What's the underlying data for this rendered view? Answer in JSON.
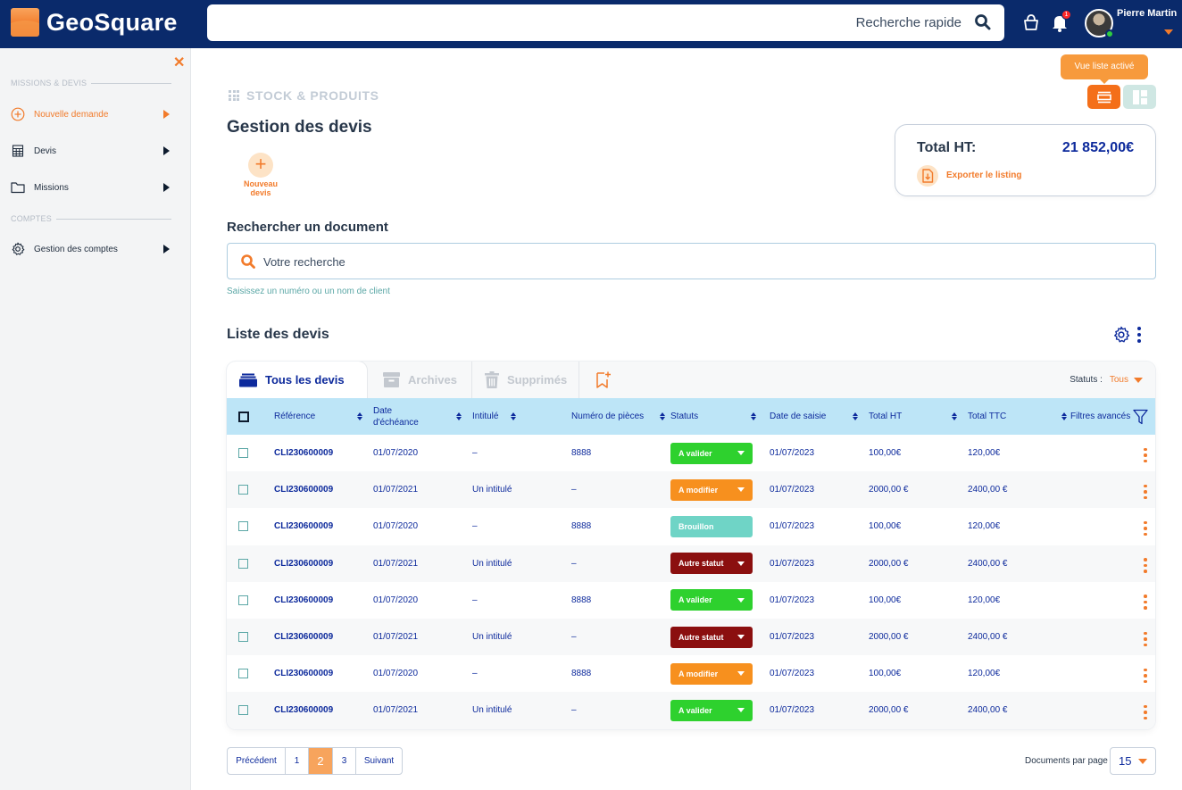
{
  "header": {
    "logo_text": "GeoSquare",
    "quick_search_label": "Recherche rapide",
    "notification_count": "1",
    "user_name": "Pierre Martin"
  },
  "sidebar": {
    "section_missions": "MISSIONS & DEVIS",
    "section_accounts": "COMPTES",
    "items": [
      {
        "label": "Nouvelle demande",
        "icon": "plus-circle-icon",
        "active": true
      },
      {
        "label": "Devis",
        "icon": "calculator-icon",
        "active": false
      },
      {
        "label": "Missions",
        "icon": "folder-icon",
        "active": false
      },
      {
        "label": "Gestion des comptes",
        "icon": "gear-icon",
        "active": false
      }
    ]
  },
  "main": {
    "tooltip": "Vue liste activé",
    "breadcrumb": "STOCK & PRODUITS",
    "title": "Gestion des devis",
    "new_quote_label_1": "Nouveau",
    "new_quote_label_2": "devis",
    "total_label": "Total HT:",
    "total_value": "21 852,00€",
    "export_label": "Exporter le listing",
    "search_title": "Rechercher un document",
    "search_placeholder": "Votre recherche",
    "search_hint": "Saisissez un numéro ou un nom de client",
    "list_title": "Liste des devis"
  },
  "tabs": {
    "all": "Tous les devis",
    "archives": "Archives",
    "deleted": "Supprimés",
    "status_label": "Statuts :",
    "status_value": "Tous"
  },
  "table": {
    "headers": {
      "reference": "Référence",
      "due_date_1": "Date",
      "due_date_2": "d'échéance",
      "title": "Intitulé",
      "parts": "Numéro de pièces",
      "status": "Statuts",
      "entry_date": "Date de saisie",
      "total_ht": "Total HT",
      "total_ttc": "Total TTC",
      "filters": "Filtres avancés"
    },
    "rows": [
      {
        "ref": "CLI230600009",
        "due": "01/07/2020",
        "title": "–",
        "parts": "8888",
        "status": "A valider",
        "status_color": "#2ed12e",
        "entry": "01/07/2023",
        "ht": "100,00€",
        "ttc": "120,00€"
      },
      {
        "ref": "CLI230600009",
        "due": "01/07/2021",
        "title": "Un intitulé",
        "parts": "–",
        "status": "A modifier",
        "status_color": "#f7901e",
        "entry": "01/07/2023",
        "ht": "2000,00 €",
        "ttc": "2400,00 €"
      },
      {
        "ref": "CLI230600009",
        "due": "01/07/2020",
        "title": "–",
        "parts": "8888",
        "status": "Brouillon",
        "status_color": "#6fd4c6",
        "entry": "01/07/2023",
        "ht": "100,00€",
        "ttc": "120,00€"
      },
      {
        "ref": "CLI230600009",
        "due": "01/07/2021",
        "title": "Un intitulé",
        "parts": "–",
        "status": "Autre statut",
        "status_color": "#8b0f0f",
        "entry": "01/07/2023",
        "ht": "2000,00 €",
        "ttc": "2400,00 €"
      },
      {
        "ref": "CLI230600009",
        "due": "01/07/2020",
        "title": "–",
        "parts": "8888",
        "status": "A valider",
        "status_color": "#2ed12e",
        "entry": "01/07/2023",
        "ht": "100,00€",
        "ttc": "120,00€"
      },
      {
        "ref": "CLI230600009",
        "due": "01/07/2021",
        "title": "Un intitulé",
        "parts": "–",
        "status": "Autre statut",
        "status_color": "#8b0f0f",
        "entry": "01/07/2023",
        "ht": "2000,00 €",
        "ttc": "2400,00 €"
      },
      {
        "ref": "CLI230600009",
        "due": "01/07/2020",
        "title": "–",
        "parts": "8888",
        "status": "A modifier",
        "status_color": "#f7901e",
        "entry": "01/07/2023",
        "ht": "100,00€",
        "ttc": "120,00€"
      },
      {
        "ref": "CLI230600009",
        "due": "01/07/2021",
        "title": "Un intitulé",
        "parts": "–",
        "status": "A valider",
        "status_color": "#2ed12e",
        "entry": "01/07/2023",
        "ht": "2000,00 €",
        "ttc": "2400,00 €"
      }
    ]
  },
  "pagination": {
    "prev": "Précédent",
    "pages": [
      "1",
      "2",
      "3"
    ],
    "current": "2",
    "next": "Suivant",
    "per_page_label": "Documents par page",
    "per_page_value": "15"
  },
  "colors": {
    "brand_navy": "#0a2a6b",
    "accent_orange": "#f27b2b",
    "table_header": "#bde5f7",
    "link_blue": "#0d2a9c"
  }
}
